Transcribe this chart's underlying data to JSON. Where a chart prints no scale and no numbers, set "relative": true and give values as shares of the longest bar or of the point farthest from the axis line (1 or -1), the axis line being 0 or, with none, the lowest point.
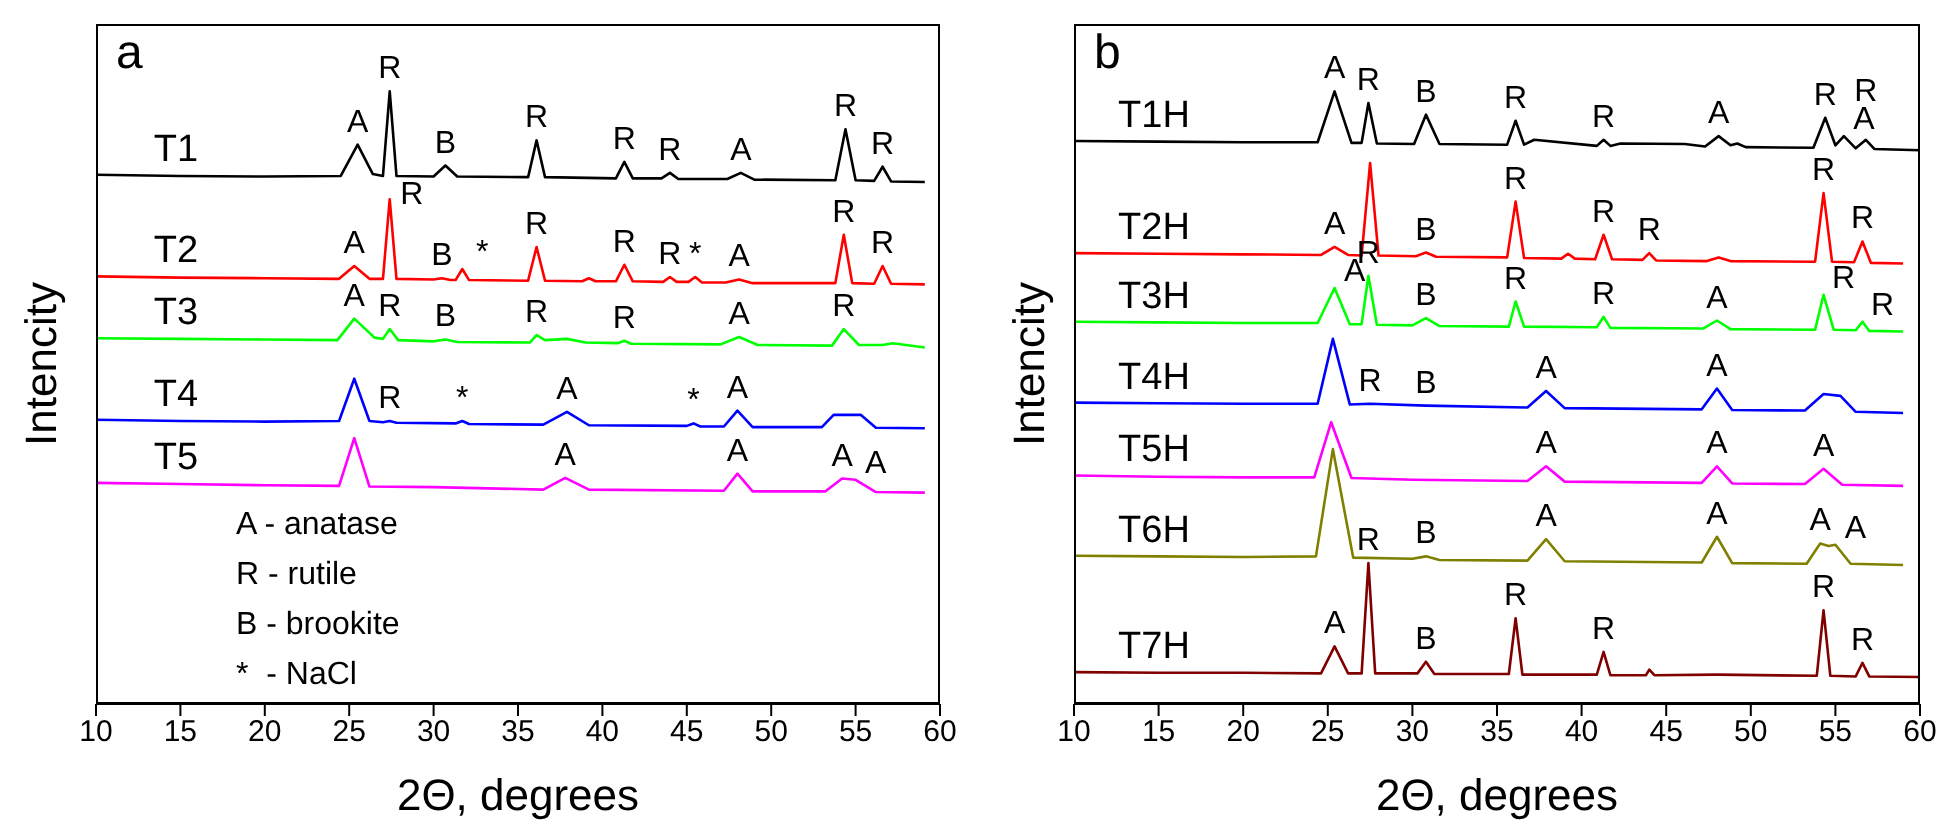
{
  "chart_data": [
    {
      "type": "line",
      "title": "a",
      "xlabel": "2Θ, degrees",
      "ylabel": "Intencity",
      "relative": true,
      "xlim": [
        10,
        60
      ],
      "xticks": [
        10,
        15,
        20,
        25,
        30,
        35,
        40,
        45,
        50,
        55,
        60
      ],
      "series": [
        {
          "name": "T1",
          "color": "#000000",
          "x": [
            10,
            15,
            20,
            24.5,
            25.5,
            26.4,
            27.0,
            27.4,
            27.8,
            30.0,
            30.7,
            31.4,
            35.6,
            36.1,
            36.6,
            40.8,
            41.3,
            41.8,
            43.5,
            44.0,
            44.5,
            47.4,
            48.2,
            49.0,
            53.8,
            54.4,
            55.0,
            56.1,
            56.6,
            57.1,
            59.1
          ],
          "values": [
            0.864,
            0.862,
            0.861,
            0.862,
            0.913,
            0.865,
            0.862,
            1.0,
            0.862,
            0.861,
            0.879,
            0.861,
            0.86,
            0.92,
            0.86,
            0.858,
            0.885,
            0.858,
            0.858,
            0.867,
            0.857,
            0.857,
            0.867,
            0.856,
            0.855,
            0.938,
            0.855,
            0.854,
            0.877,
            0.853,
            0.852
          ]
        },
        {
          "name": "T2",
          "color": "#ff0000",
          "x": [
            10,
            15,
            20,
            24.4,
            25.3,
            26.2,
            27.0,
            27.4,
            27.8,
            30.0,
            30.5,
            31.0,
            31.3,
            31.7,
            32.1,
            35.6,
            36.1,
            36.6,
            38.8,
            39.2,
            39.6,
            40.8,
            41.3,
            41.8,
            43.6,
            44.0,
            44.4,
            45.1,
            45.5,
            45.9,
            47.3,
            48.1,
            48.9,
            53.8,
            54.3,
            54.8,
            56.1,
            56.6,
            57.1,
            59.1
          ],
          "values": [
            0.698,
            0.696,
            0.695,
            0.694,
            0.715,
            0.694,
            0.694,
            0.824,
            0.694,
            0.693,
            0.695,
            0.692,
            0.692,
            0.71,
            0.692,
            0.691,
            0.746,
            0.691,
            0.69,
            0.695,
            0.69,
            0.69,
            0.717,
            0.69,
            0.689,
            0.697,
            0.689,
            0.689,
            0.697,
            0.688,
            0.688,
            0.693,
            0.687,
            0.687,
            0.766,
            0.687,
            0.686,
            0.715,
            0.686,
            0.685
          ]
        },
        {
          "name": "T3",
          "color": "#00ff00",
          "x": [
            10,
            15,
            20,
            24.3,
            25.3,
            26.5,
            27.0,
            27.4,
            27.9,
            30.0,
            30.7,
            31.4,
            35.7,
            36.1,
            36.6,
            37.9,
            39.0,
            40.9,
            41.3,
            41.7,
            47.0,
            48.1,
            49.2,
            53.6,
            54.3,
            55.2,
            56.6,
            57.2,
            59.1
          ],
          "values": [
            0.597,
            0.596,
            0.595,
            0.594,
            0.629,
            0.598,
            0.596,
            0.612,
            0.594,
            0.592,
            0.595,
            0.591,
            0.59,
            0.602,
            0.594,
            0.596,
            0.59,
            0.589,
            0.593,
            0.588,
            0.587,
            0.599,
            0.586,
            0.585,
            0.612,
            0.586,
            0.586,
            0.589,
            0.582
          ]
        },
        {
          "name": "T4",
          "color": "#0000ff",
          "x": [
            10,
            15,
            20,
            24.4,
            25.3,
            26.2,
            27.0,
            27.4,
            27.8,
            31.3,
            31.7,
            32.1,
            36.5,
            37.9,
            39.2,
            45.0,
            45.4,
            45.8,
            47.2,
            48.0,
            48.9,
            53.0,
            53.7,
            55.3,
            56.2,
            59.1
          ],
          "values": [
            0.464,
            0.462,
            0.461,
            0.462,
            0.531,
            0.462,
            0.46,
            0.462,
            0.459,
            0.458,
            0.462,
            0.457,
            0.456,
            0.477,
            0.455,
            0.454,
            0.458,
            0.453,
            0.453,
            0.479,
            0.452,
            0.452,
            0.472,
            0.472,
            0.451,
            0.45
          ]
        },
        {
          "name": "T5",
          "color": "#ff00ff",
          "x": [
            10,
            15,
            20,
            24.4,
            25.3,
            26.2,
            30,
            36.5,
            37.8,
            39.2,
            47.2,
            48.0,
            48.9,
            53.2,
            54.2,
            55.0,
            56.2,
            59.1
          ],
          "values": [
            0.361,
            0.359,
            0.357,
            0.356,
            0.434,
            0.355,
            0.354,
            0.35,
            0.369,
            0.35,
            0.348,
            0.376,
            0.347,
            0.347,
            0.368,
            0.366,
            0.346,
            0.345
          ]
        }
      ],
      "annotations": [
        {
          "text": "A",
          "x": 25.5,
          "y": 0.913
        },
        {
          "text": "R",
          "x": 27.4,
          "y": 1.0
        },
        {
          "text": "B",
          "x": 30.7,
          "y": 0.879
        },
        {
          "text": "R",
          "x": 36.1,
          "y": 0.92
        },
        {
          "text": "R",
          "x": 41.3,
          "y": 0.885
        },
        {
          "text": "R",
          "x": 44.0,
          "y": 0.867
        },
        {
          "text": "A",
          "x": 48.2,
          "y": 0.867
        },
        {
          "text": "R",
          "x": 54.4,
          "y": 0.938
        },
        {
          "text": "R",
          "x": 56.6,
          "y": 0.877
        },
        {
          "text": "A",
          "x": 25.3,
          "y": 0.715
        },
        {
          "text": "R",
          "x": 27.4,
          "y": 0.824
        },
        {
          "text": "B",
          "x": 30.5,
          "y": 0.695
        },
        {
          "text": "*",
          "x": 31.7,
          "y": 0.71
        },
        {
          "text": "R",
          "x": 36.1,
          "y": 0.746
        },
        {
          "text": "R",
          "x": 41.3,
          "y": 0.717
        },
        {
          "text": "R",
          "x": 44.0,
          "y": 0.697
        },
        {
          "text": "*",
          "x": 45.5,
          "y": 0.697
        },
        {
          "text": "A",
          "x": 48.1,
          "y": 0.693
        },
        {
          "text": "R",
          "x": 54.3,
          "y": 0.766
        },
        {
          "text": "R",
          "x": 56.6,
          "y": 0.715
        },
        {
          "text": "A",
          "x": 25.3,
          "y": 0.629
        },
        {
          "text": "R",
          "x": 27.4,
          "y": 0.612
        },
        {
          "text": "B",
          "x": 30.7,
          "y": 0.595
        },
        {
          "text": "R",
          "x": 36.1,
          "y": 0.602
        },
        {
          "text": "R",
          "x": 41.3,
          "y": 0.593
        },
        {
          "text": "A",
          "x": 48.1,
          "y": 0.599
        },
        {
          "text": "R",
          "x": 54.3,
          "y": 0.612
        },
        {
          "text": "R",
          "x": 27.4,
          "y": 0.462
        },
        {
          "text": "*",
          "x": 31.7,
          "y": 0.462
        },
        {
          "text": "A",
          "x": 37.9,
          "y": 0.477
        },
        {
          "text": "*",
          "x": 45.4,
          "y": 0.458
        },
        {
          "text": "A",
          "x": 48.0,
          "y": 0.479
        },
        {
          "text": "A",
          "x": 37.8,
          "y": 0.369
        },
        {
          "text": "A",
          "x": 48.0,
          "y": 0.376
        },
        {
          "text": "A",
          "x": 54.2,
          "y": 0.368
        },
        {
          "text": "A",
          "x": 55.0,
          "y": 0.366
        },
        "A - anatase",
        "R - rutile",
        "B - brookite",
        "*  - NaCl"
      ]
    },
    {
      "type": "line",
      "title": "b",
      "xlabel": "2Θ, degrees",
      "ylabel": "Intencity",
      "relative": true,
      "xlim": [
        10,
        60
      ],
      "xticks": [
        10,
        15,
        20,
        25,
        30,
        35,
        40,
        45,
        50,
        55,
        60
      ],
      "series": [
        {
          "name": "T1H",
          "color": "#000000",
          "x": [
            10,
            15,
            20,
            24.4,
            25.4,
            26.4,
            27.0,
            27.4,
            27.9,
            30.1,
            30.8,
            31.6,
            35.6,
            36.1,
            36.6,
            37.2,
            40.9,
            41.3,
            41.7,
            42.3,
            46.1,
            47.3,
            48.1,
            48.8,
            49.2,
            49.7,
            53.7,
            54.4,
            55.0,
            55.5,
            56.2,
            56.8,
            57.3,
            60
          ],
          "values": [
            0.919,
            0.918,
            0.917,
            0.917,
            1.0,
            0.916,
            0.916,
            0.981,
            0.915,
            0.914,
            0.962,
            0.914,
            0.913,
            0.952,
            0.913,
            0.921,
            0.911,
            0.921,
            0.911,
            0.915,
            0.914,
            0.91,
            0.927,
            0.912,
            0.915,
            0.909,
            0.908,
            0.957,
            0.912,
            0.927,
            0.907,
            0.921,
            0.906,
            0.904
          ]
        },
        {
          "name": "T2H",
          "color": "#ff0000",
          "x": [
            10,
            15,
            20,
            24.6,
            25.4,
            26.2,
            27.0,
            27.5,
            28.0,
            30.2,
            30.8,
            31.4,
            35.6,
            36.1,
            36.6,
            38.8,
            39.2,
            39.6,
            40.8,
            41.3,
            41.8,
            43.6,
            44.0,
            44.4,
            47.4,
            48.1,
            48.8,
            53.8,
            54.3,
            54.8,
            56.1,
            56.6,
            57.1,
            59
          ],
          "values": [
            0.736,
            0.735,
            0.734,
            0.733,
            0.746,
            0.733,
            0.732,
            0.883,
            0.732,
            0.731,
            0.737,
            0.73,
            0.729,
            0.82,
            0.728,
            0.727,
            0.735,
            0.727,
            0.726,
            0.766,
            0.726,
            0.725,
            0.736,
            0.724,
            0.723,
            0.729,
            0.723,
            0.722,
            0.834,
            0.722,
            0.721,
            0.755,
            0.72,
            0.719
          ]
        },
        {
          "name": "T3H",
          "color": "#00ff00",
          "x": [
            10,
            15,
            20,
            24.4,
            25.4,
            26.3,
            27.0,
            27.4,
            27.9,
            30.0,
            30.8,
            31.6,
            35.7,
            36.1,
            36.6,
            40.9,
            41.3,
            41.7,
            47.2,
            48.0,
            48.8,
            53.8,
            54.3,
            54.9,
            56.2,
            56.6,
            57.0,
            59
          ],
          "values": [
            0.624,
            0.623,
            0.622,
            0.622,
            0.679,
            0.62,
            0.62,
            0.699,
            0.619,
            0.618,
            0.63,
            0.617,
            0.616,
            0.657,
            0.616,
            0.615,
            0.632,
            0.614,
            0.613,
            0.626,
            0.612,
            0.611,
            0.668,
            0.611,
            0.61,
            0.624,
            0.609,
            0.608
          ]
        },
        {
          "name": "T4H",
          "color": "#0000ff",
          "x": [
            10,
            15,
            20,
            24.4,
            25.3,
            26.3,
            27.5,
            30.8,
            36.8,
            37.9,
            39.0,
            47.1,
            48.0,
            48.9,
            53.2,
            54.3,
            55.3,
            56.2,
            59
          ],
          "values": [
            0.492,
            0.491,
            0.49,
            0.49,
            0.596,
            0.489,
            0.49,
            0.487,
            0.484,
            0.511,
            0.483,
            0.481,
            0.515,
            0.48,
            0.479,
            0.506,
            0.503,
            0.477,
            0.475
          ]
        },
        {
          "name": "T5H",
          "color": "#ff00ff",
          "x": [
            10,
            15,
            20,
            24.2,
            25.2,
            26.4,
            30,
            36.8,
            37.9,
            39.0,
            47.1,
            48.0,
            48.9,
            53.2,
            54.3,
            55.4,
            59
          ],
          "values": [
            0.373,
            0.371,
            0.37,
            0.37,
            0.46,
            0.369,
            0.366,
            0.364,
            0.388,
            0.363,
            0.361,
            0.388,
            0.36,
            0.359,
            0.384,
            0.358,
            0.356
          ]
        },
        {
          "name": "T6H",
          "color": "#808000",
          "x": [
            10,
            15,
            20,
            24.3,
            25.3,
            26.5,
            30.0,
            30.8,
            31.6,
            36.8,
            37.9,
            39.0,
            47.1,
            48.0,
            48.9,
            53.3,
            54.1,
            54.6,
            55.0,
            55.9,
            59
          ],
          "values": [
            0.242,
            0.241,
            0.24,
            0.241,
            0.416,
            0.239,
            0.237,
            0.241,
            0.235,
            0.234,
            0.269,
            0.233,
            0.231,
            0.273,
            0.23,
            0.229,
            0.262,
            0.258,
            0.26,
            0.229,
            0.227
          ]
        },
        {
          "name": "T7H",
          "color": "#800000",
          "x": [
            10,
            15,
            20,
            24.6,
            25.4,
            26.2,
            27.0,
            27.4,
            27.8,
            30.3,
            30.8,
            31.3,
            35.7,
            36.1,
            36.5,
            40.9,
            41.3,
            41.7,
            43.8,
            44.0,
            44.3,
            48,
            53.9,
            54.3,
            54.7,
            56.2,
            56.6,
            57.0,
            60
          ],
          "values": [
            0.052,
            0.051,
            0.051,
            0.05,
            0.094,
            0.05,
            0.05,
            0.23,
            0.05,
            0.05,
            0.069,
            0.049,
            0.049,
            0.14,
            0.048,
            0.048,
            0.085,
            0.047,
            0.047,
            0.056,
            0.047,
            0.048,
            0.046,
            0.153,
            0.046,
            0.045,
            0.067,
            0.045,
            0.044
          ]
        }
      ],
      "annotations": [
        {
          "text": "A",
          "x": 25.4,
          "y": 1.0
        },
        {
          "text": "R",
          "x": 27.4,
          "y": 0.981
        },
        {
          "text": "B",
          "x": 30.8,
          "y": 0.962
        },
        {
          "text": "R",
          "x": 36.1,
          "y": 0.952
        },
        {
          "text": "R",
          "x": 41.3,
          "y": 0.921
        },
        {
          "text": "A",
          "x": 48.1,
          "y": 0.927
        },
        {
          "text": "R",
          "x": 54.4,
          "y": 0.957
        },
        {
          "text": "A",
          "x": 55.5,
          "y": 0.927
        },
        {
          "text": "R",
          "x": 56.8,
          "y": 0.921
        },
        {
          "text": "A",
          "x": 25.4,
          "y": 0.746
        },
        {
          "text": "B",
          "x": 30.8,
          "y": 0.737
        },
        {
          "text": "R",
          "x": 36.1,
          "y": 0.82
        },
        {
          "text": "R",
          "x": 41.3,
          "y": 0.766
        },
        {
          "text": "R",
          "x": 44.0,
          "y": 0.736
        },
        {
          "text": "R",
          "x": 54.3,
          "y": 0.834
        },
        {
          "text": "R",
          "x": 56.6,
          "y": 0.755
        },
        {
          "text": "A",
          "x": 25.4,
          "y": 0.679
        },
        {
          "text": "R",
          "x": 27.4,
          "y": 0.699
        },
        {
          "text": "B",
          "x": 30.8,
          "y": 0.63
        },
        {
          "text": "R",
          "x": 36.1,
          "y": 0.657
        },
        {
          "text": "R",
          "x": 41.3,
          "y": 0.632
        },
        {
          "text": "A",
          "x": 48.0,
          "y": 0.626
        },
        {
          "text": "R",
          "x": 54.3,
          "y": 0.668
        },
        {
          "text": "R",
          "x": 56.6,
          "y": 0.624
        },
        {
          "text": "R",
          "x": 27.5,
          "y": 0.49
        },
        {
          "text": "B",
          "x": 30.8,
          "y": 0.487
        },
        {
          "text": "A",
          "x": 37.9,
          "y": 0.511
        },
        {
          "text": "A",
          "x": 48.0,
          "y": 0.515
        },
        {
          "text": "A",
          "x": 37.9,
          "y": 0.388
        },
        {
          "text": "A",
          "x": 48.0,
          "y": 0.388
        },
        {
          "text": "A",
          "x": 54.3,
          "y": 0.384
        },
        {
          "text": "B",
          "x": 30.8,
          "y": 0.241
        },
        {
          "text": "A",
          "x": 37.9,
          "y": 0.269
        },
        {
          "text": "A",
          "x": 48.0,
          "y": 0.273
        },
        {
          "text": "A",
          "x": 54.1,
          "y": 0.262
        },
        {
          "text": "A",
          "x": 55.0,
          "y": 0.26
        },
        {
          "text": "A",
          "x": 25.4,
          "y": 0.094
        },
        {
          "text": "R",
          "x": 27.4,
          "y": 0.23
        },
        {
          "text": "B",
          "x": 30.8,
          "y": 0.069
        },
        {
          "text": "R",
          "x": 36.1,
          "y": 0.14
        },
        {
          "text": "R",
          "x": 41.3,
          "y": 0.085
        },
        {
          "text": "R",
          "x": 54.3,
          "y": 0.153
        },
        {
          "text": "R",
          "x": 56.6,
          "y": 0.067
        }
      ]
    }
  ]
}
